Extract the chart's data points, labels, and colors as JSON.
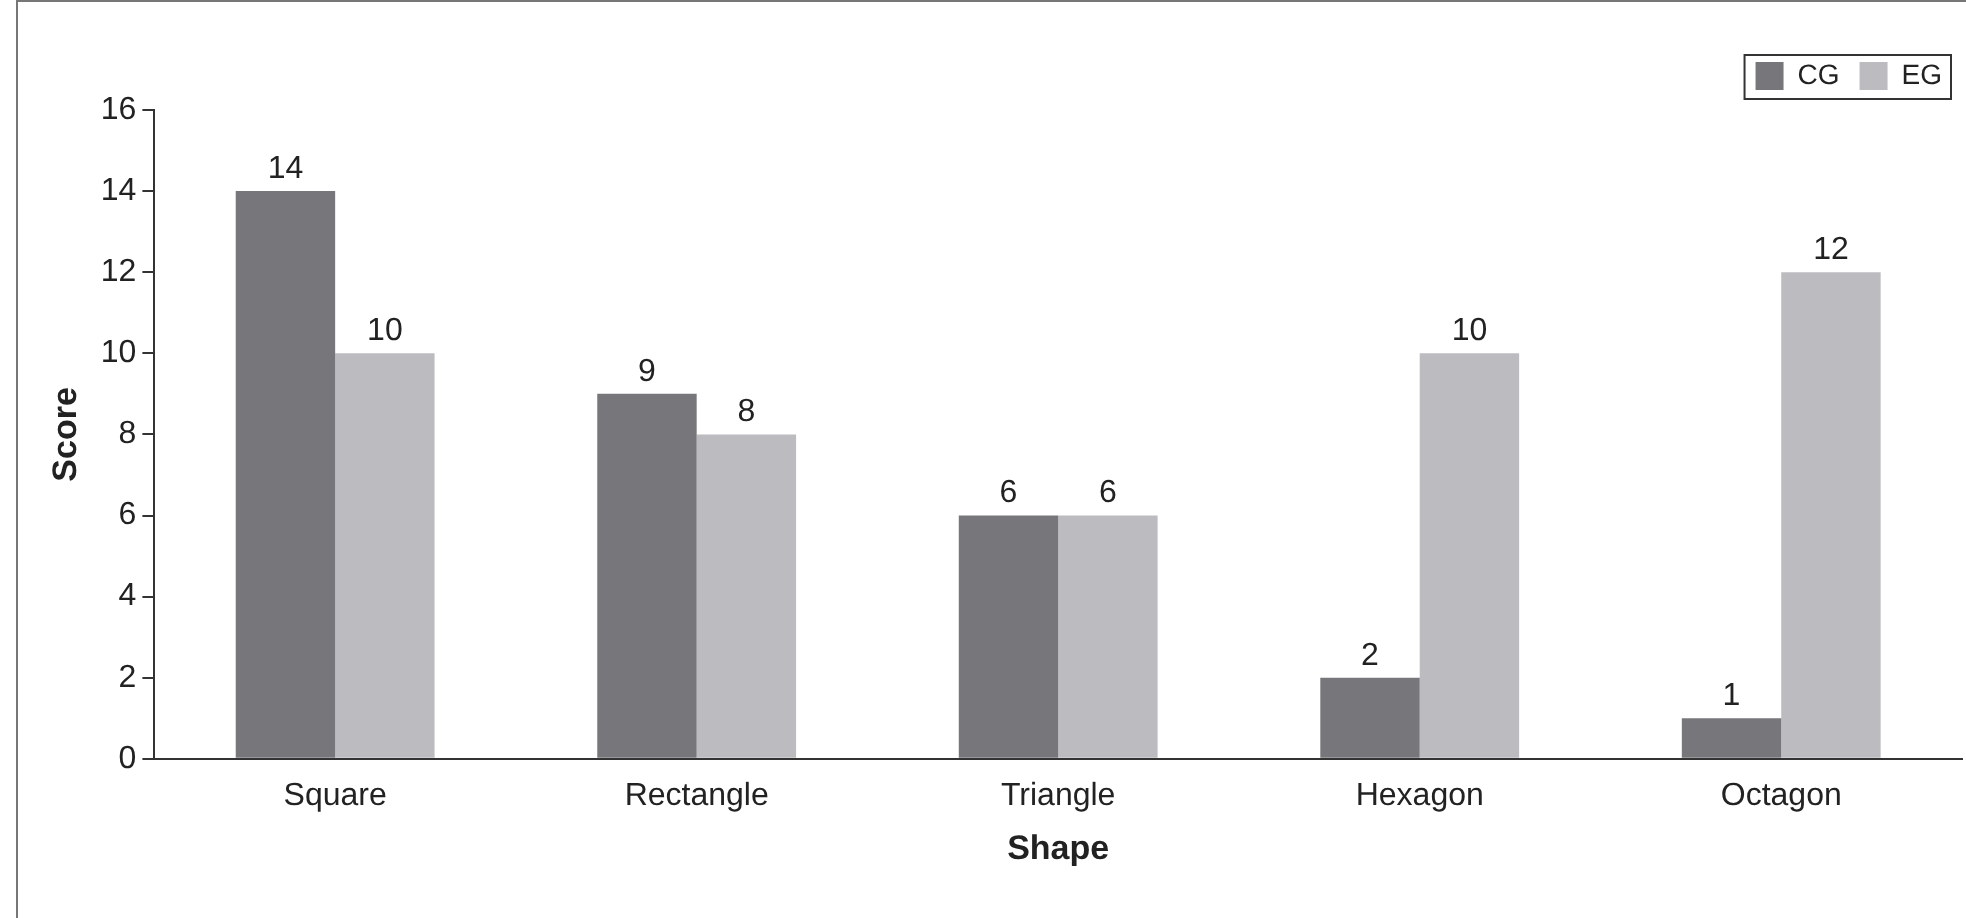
{
  "chart_data": {
    "type": "bar",
    "xlabel": "Shape",
    "ylabel": "Score",
    "categories": [
      "Square",
      "Rectangle",
      "Triangle",
      "Hexagon",
      "Octagon"
    ],
    "series": [
      {
        "name": "CG",
        "color": "#77777b",
        "values": [
          14,
          9,
          6,
          2,
          1
        ]
      },
      {
        "name": "EG",
        "color": "#bcbcc0",
        "values": [
          10,
          8,
          6,
          10,
          12
        ]
      }
    ],
    "ylim": [
      0,
      16
    ],
    "yticks": [
      0,
      2,
      4,
      6,
      8,
      10,
      12,
      14,
      16
    ],
    "grid": false,
    "legend": "top right",
    "data_labels": true
  }
}
